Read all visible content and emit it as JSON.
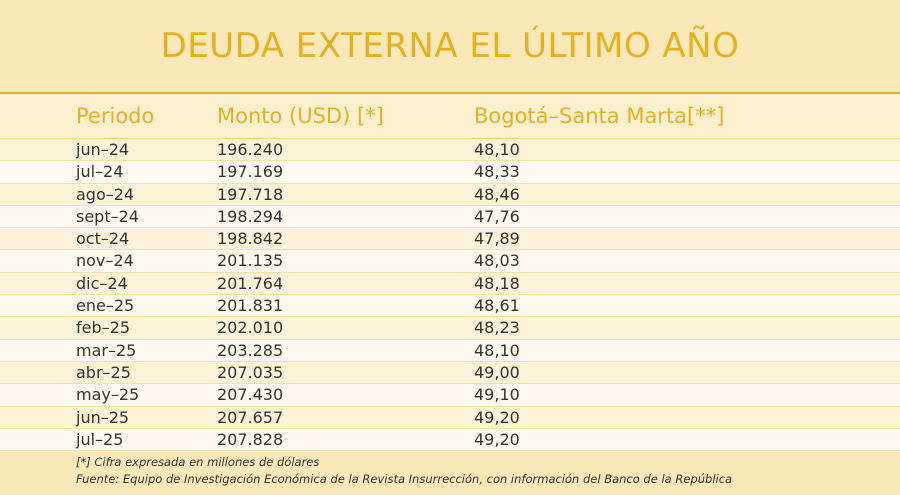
{
  "title": "DEUDA EXTERNA EL ÚLTIMO AÑO",
  "chart_data": {
    "type": "table",
    "columns": [
      "Periodo",
      "Monto (USD) [*]",
      "Bogotá–Santa Marta[**]"
    ],
    "rows": [
      [
        "jun–24",
        "196.240",
        "48,10"
      ],
      [
        "jul–24",
        "197.169",
        "48,33"
      ],
      [
        "ago–24",
        "197.718",
        "48,46"
      ],
      [
        "sept–24",
        "198.294",
        "47,76"
      ],
      [
        "oct–24",
        "198.842",
        "47,89"
      ],
      [
        "nov–24",
        "201.135",
        "48,03"
      ],
      [
        "dic–24",
        "201.764",
        "48,18"
      ],
      [
        "ene–25",
        "201.831",
        "48,61"
      ],
      [
        "feb–25",
        "202.010",
        "48,23"
      ],
      [
        "mar–25",
        "203.285",
        "48,10"
      ],
      [
        "abr–25",
        "207.035",
        "49,00"
      ],
      [
        "may–25",
        "207.430",
        "49,10"
      ],
      [
        "jun–25",
        "207.657",
        "49,20"
      ],
      [
        "jul–25",
        "207.828",
        "49,20"
      ]
    ]
  },
  "notes": {
    "footnote": "[*] Cifra expresada en millones de dólares",
    "source": "Fuente: Equipo de Investigación Económica de la Revista Insurrección, con información del Banco de la República"
  },
  "colors": {
    "accent": "#e4b024",
    "background": "#fbe8b8"
  }
}
